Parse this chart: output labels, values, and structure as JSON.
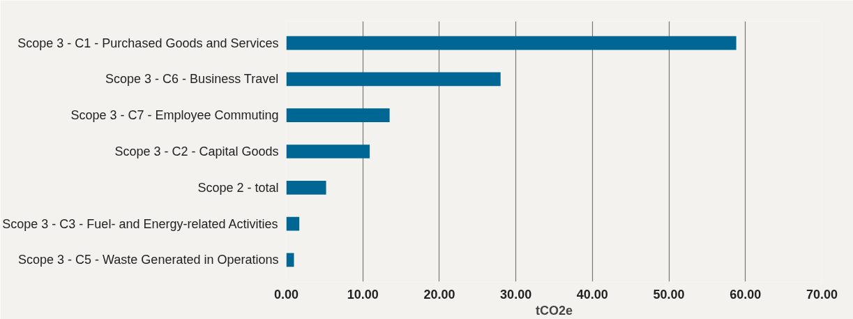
{
  "chart_data": {
    "type": "bar",
    "orientation": "horizontal",
    "xlabel": "tCO2e",
    "categories": [
      "Scope 3 - C1 - Purchased Goods and Services",
      "Scope 3 - C6 - Business Travel",
      "Scope 3 - C7 - Employee Commuting",
      "Scope 3 - C2 - Capital Goods",
      "Scope 2 - total",
      "Scope 3 - C3 - Fuel- and Energy-related Activities",
      "Scope 3 - C5 - Waste Generated in Operations"
    ],
    "values": [
      58.8,
      28.0,
      13.5,
      10.9,
      5.2,
      1.7,
      1.0
    ],
    "color": "#006794",
    "xlim": [
      0,
      70
    ],
    "xticks": [
      {
        "value": 0,
        "label": "0.00"
      },
      {
        "value": 10,
        "label": "10.00"
      },
      {
        "value": 20,
        "label": "20.00"
      },
      {
        "value": 30,
        "label": "30.00"
      },
      {
        "value": 40,
        "label": "40.00"
      },
      {
        "value": 50,
        "label": "50.00"
      },
      {
        "value": 60,
        "label": "60.00"
      },
      {
        "value": 70,
        "label": "70.00"
      }
    ],
    "grid": "x"
  }
}
